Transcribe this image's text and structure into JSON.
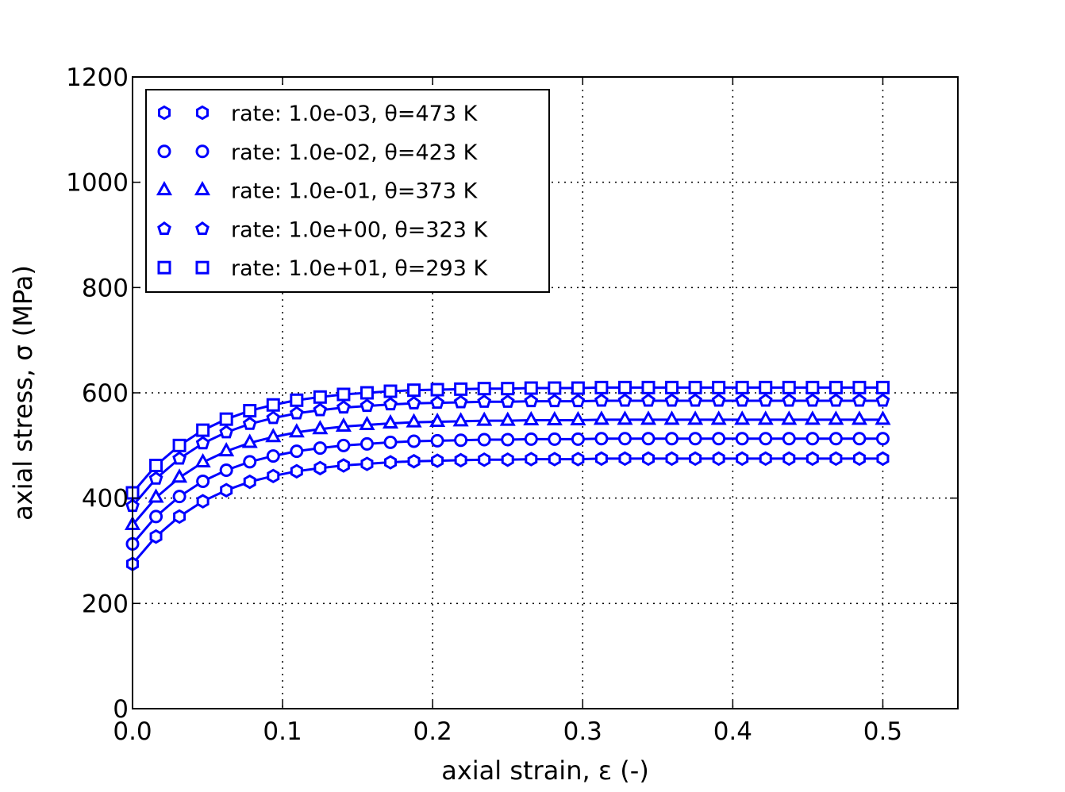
{
  "chart_data": {
    "type": "line",
    "title": "",
    "xlabel": "axial strain, ε (-)",
    "ylabel": "axial stress, σ (MPa)",
    "xlim": [
      0.0,
      0.55
    ],
    "ylim": [
      0,
      1200
    ],
    "xticks": [
      "0.0",
      "0.1",
      "0.2",
      "0.3",
      "0.4",
      "0.5"
    ],
    "xtick_values": [
      0,
      0.1,
      0.2,
      0.3,
      0.4,
      0.5
    ],
    "yticks": [
      "0",
      "200",
      "400",
      "600",
      "800",
      "1000",
      "1200"
    ],
    "ytick_values": [
      0,
      200,
      400,
      600,
      800,
      1000,
      1200
    ],
    "grid": true,
    "legend_position": "top-left",
    "color": "#0000ff",
    "x": [
      0,
      0.01563,
      0.03125,
      0.04688,
      0.0625,
      0.07813,
      0.09375,
      0.10938,
      0.125,
      0.14063,
      0.15625,
      0.17188,
      0.1875,
      0.20313,
      0.21875,
      0.23438,
      0.25,
      0.26563,
      0.28125,
      0.29688,
      0.3125,
      0.32813,
      0.34375,
      0.35938,
      0.375,
      0.39063,
      0.40625,
      0.42188,
      0.4375,
      0.45313,
      0.46875,
      0.48438,
      0.5
    ],
    "series": [
      {
        "name": "rate: 1.0e-03, θ=473 K",
        "marker": "hexagon",
        "values": [
          275,
          327,
          365,
          394,
          415,
          431,
          442,
          451,
          457,
          462,
          465,
          468,
          470,
          471,
          472,
          473,
          473,
          474,
          474,
          474,
          475,
          475,
          475,
          475,
          475,
          475,
          475,
          475,
          475,
          475,
          475,
          475,
          475
        ]
      },
      {
        "name": "rate: 1.0e-02, θ=423 K",
        "marker": "circle",
        "values": [
          313,
          365,
          403,
          432,
          453,
          469,
          480,
          489,
          495,
          500,
          503,
          506,
          508,
          509,
          510,
          511,
          511,
          512,
          512,
          512,
          513,
          513,
          513,
          513,
          513,
          513,
          513,
          513,
          513,
          513,
          513,
          513,
          513
        ]
      },
      {
        "name": "rate: 1.0e-01, θ=373 K",
        "marker": "triangle",
        "values": [
          349,
          401,
          439,
          468,
          489,
          505,
          516,
          525,
          531,
          536,
          539,
          542,
          544,
          545,
          546,
          547,
          547,
          548,
          548,
          548,
          549,
          549,
          549,
          549,
          549,
          549,
          549,
          549,
          549,
          549,
          549,
          549,
          549
        ]
      },
      {
        "name": "rate: 1.0e+00, θ=323 K",
        "marker": "pentagon",
        "values": [
          385,
          437,
          475,
          504,
          525,
          541,
          552,
          561,
          567,
          572,
          575,
          578,
          580,
          581,
          582,
          583,
          583,
          584,
          584,
          584,
          585,
          585,
          585,
          585,
          585,
          585,
          585,
          585,
          585,
          585,
          585,
          585,
          585
        ]
      },
      {
        "name": "rate: 1.0e+01, θ=293 K",
        "marker": "square",
        "values": [
          410,
          462,
          500,
          529,
          550,
          566,
          577,
          586,
          592,
          597,
          600,
          603,
          605,
          606,
          607,
          608,
          608,
          609,
          609,
          609,
          610,
          610,
          610,
          610,
          610,
          610,
          610,
          610,
          610,
          610,
          610,
          610,
          610
        ]
      }
    ]
  }
}
